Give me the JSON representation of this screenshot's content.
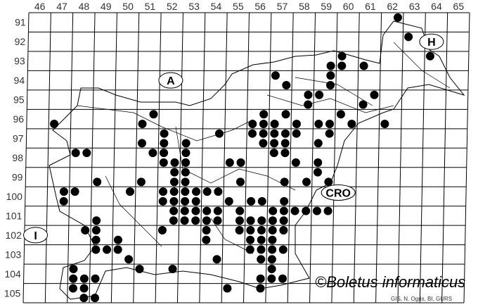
{
  "map": {
    "columns": [
      46,
      47,
      48,
      49,
      50,
      51,
      52,
      53,
      54,
      55,
      56,
      57,
      58,
      59,
      60,
      61,
      62,
      63,
      64,
      65
    ],
    "rows": [
      91,
      92,
      93,
      94,
      95,
      96,
      97,
      98,
      99,
      100,
      101,
      102,
      103,
      104,
      105
    ],
    "region_labels": [
      {
        "text": "A",
        "col": 52.5,
        "row": 94.5
      },
      {
        "text": "H",
        "col": 64.3,
        "row": 92.5
      },
      {
        "text": "CRO",
        "col": 60.2,
        "row": 100.3
      },
      {
        "text": "I",
        "col": 46.5,
        "row": 102.5
      }
    ],
    "copyright": "©Boletus informaticus",
    "credit": "GIS, N. Ogris, BI, GURS",
    "dot_color": "#000000",
    "records_note_quadrants": "1=NW 2=NE 3=SW 4=SE",
    "records": [
      [
        62,
        91,
        2
      ],
      [
        63,
        92,
        1
      ],
      [
        64,
        93,
        1
      ],
      [
        60,
        93,
        1
      ],
      [
        59,
        93,
        4
      ],
      [
        60,
        93,
        3
      ],
      [
        61,
        93,
        3
      ],
      [
        59,
        94,
        2
      ],
      [
        57,
        94,
        1
      ],
      [
        57,
        94,
        4
      ],
      [
        59,
        94,
        4
      ],
      [
        58,
        95,
        2
      ],
      [
        59,
        95,
        1
      ],
      [
        61,
        95,
        2
      ],
      [
        61,
        95,
        3
      ],
      [
        58,
        95,
        4
      ],
      [
        60,
        96,
        1
      ],
      [
        56,
        96,
        2
      ],
      [
        57,
        96,
        2
      ],
      [
        51,
        96,
        2
      ],
      [
        51,
        96,
        3
      ],
      [
        47,
        96,
        3
      ],
      [
        56,
        96,
        3
      ],
      [
        56,
        96,
        4
      ],
      [
        57,
        96,
        3
      ],
      [
        58,
        96,
        3
      ],
      [
        59,
        96,
        3
      ],
      [
        59,
        96,
        4
      ],
      [
        60,
        96,
        4
      ],
      [
        62,
        96,
        3
      ],
      [
        52,
        97,
        1
      ],
      [
        54,
        97,
        2
      ],
      [
        56,
        97,
        1
      ],
      [
        56,
        97,
        2
      ],
      [
        57,
        97,
        1
      ],
      [
        57,
        97,
        2
      ],
      [
        58,
        97,
        1
      ],
      [
        59,
        97,
        2
      ],
      [
        51,
        97,
        3
      ],
      [
        52,
        97,
        3
      ],
      [
        53,
        97,
        3
      ],
      [
        56,
        97,
        4
      ],
      [
        57,
        97,
        3
      ],
      [
        57,
        97,
        4
      ],
      [
        59,
        97,
        3
      ],
      [
        48,
        98,
        1
      ],
      [
        48,
        98,
        2
      ],
      [
        51,
        98,
        2
      ],
      [
        52,
        98,
        1
      ],
      [
        53,
        98,
        1
      ],
      [
        57,
        98,
        1
      ],
      [
        57,
        98,
        2
      ],
      [
        52,
        98,
        3
      ],
      [
        52,
        98,
        4
      ],
      [
        53,
        98,
        3
      ],
      [
        55,
        98,
        3
      ],
      [
        55,
        98,
        4
      ],
      [
        58,
        98,
        3
      ],
      [
        59,
        98,
        3
      ],
      [
        52,
        99,
        2
      ],
      [
        53,
        99,
        1
      ],
      [
        59,
        99,
        1
      ],
      [
        49,
        99,
        3
      ],
      [
        51,
        99,
        3
      ],
      [
        52,
        99,
        4
      ],
      [
        53,
        99,
        3
      ],
      [
        55,
        99,
        4
      ],
      [
        57,
        99,
        4
      ],
      [
        58,
        99,
        4
      ],
      [
        59,
        99,
        4
      ],
      [
        47,
        100,
        2
      ],
      [
        48,
        100,
        1
      ],
      [
        50,
        100,
        2
      ],
      [
        52,
        100,
        1
      ],
      [
        52,
        100,
        2
      ],
      [
        53,
        100,
        1
      ],
      [
        53,
        100,
        2
      ],
      [
        54,
        100,
        1
      ],
      [
        54,
        100,
        2
      ],
      [
        47,
        100,
        4
      ],
      [
        52,
        100,
        3
      ],
      [
        52,
        100,
        4
      ],
      [
        53,
        100,
        3
      ],
      [
        53,
        100,
        4
      ],
      [
        55,
        100,
        3
      ],
      [
        56,
        100,
        3
      ],
      [
        56,
        100,
        4
      ],
      [
        57,
        100,
        4
      ],
      [
        52,
        101,
        2
      ],
      [
        53,
        101,
        1
      ],
      [
        53,
        101,
        2
      ],
      [
        54,
        101,
        1
      ],
      [
        54,
        101,
        2
      ],
      [
        55,
        101,
        2
      ],
      [
        57,
        101,
        1
      ],
      [
        57,
        101,
        2
      ],
      [
        58,
        101,
        1
      ],
      [
        58,
        101,
        2
      ],
      [
        59,
        101,
        1
      ],
      [
        59,
        101,
        2
      ],
      [
        49,
        101,
        3
      ],
      [
        52,
        101,
        4
      ],
      [
        53,
        101,
        3
      ],
      [
        53,
        101,
        4
      ],
      [
        54,
        101,
        3
      ],
      [
        54,
        101,
        4
      ],
      [
        55,
        101,
        4
      ],
      [
        56,
        101,
        3
      ],
      [
        56,
        101,
        4
      ],
      [
        57,
        101,
        3
      ],
      [
        57,
        101,
        4
      ],
      [
        48,
        102,
        2
      ],
      [
        49,
        102,
        1
      ],
      [
        52,
        102,
        1
      ],
      [
        54,
        102,
        1
      ],
      [
        55,
        102,
        2
      ],
      [
        56,
        102,
        1
      ],
      [
        56,
        102,
        2
      ],
      [
        57,
        102,
        1
      ],
      [
        57,
        102,
        2
      ],
      [
        49,
        102,
        3
      ],
      [
        50,
        102,
        3
      ],
      [
        54,
        102,
        3
      ],
      [
        56,
        102,
        3
      ],
      [
        56,
        102,
        4
      ],
      [
        57,
        102,
        3
      ],
      [
        49,
        103,
        1
      ],
      [
        49,
        103,
        2
      ],
      [
        50,
        103,
        1
      ],
      [
        56,
        103,
        1
      ],
      [
        56,
        103,
        2
      ],
      [
        57,
        103,
        1
      ],
      [
        57,
        103,
        2
      ],
      [
        50,
        103,
        4
      ],
      [
        54,
        103,
        4
      ],
      [
        56,
        103,
        4
      ],
      [
        57,
        103,
        3
      ],
      [
        48,
        104,
        1
      ],
      [
        51,
        104,
        1
      ],
      [
        52,
        104,
        2
      ],
      [
        57,
        104,
        1
      ],
      [
        48,
        104,
        3
      ],
      [
        48,
        104,
        4
      ],
      [
        49,
        104,
        3
      ],
      [
        56,
        104,
        4
      ],
      [
        57,
        104,
        3
      ],
      [
        57,
        104,
        4
      ],
      [
        48,
        105,
        1
      ],
      [
        48,
        105,
        2
      ],
      [
        55,
        105,
        1
      ],
      [
        56,
        105,
        2
      ],
      [
        48,
        105,
        4
      ],
      [
        49,
        105,
        3
      ]
    ]
  }
}
